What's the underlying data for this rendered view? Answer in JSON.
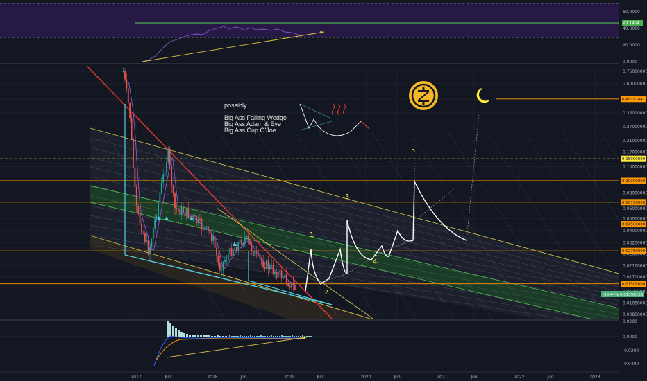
{
  "chart_data": [
    {
      "type": "line",
      "panel": "rsi-indicator",
      "y_ticks": [
        "60.0000",
        "40.0000",
        "20.0000",
        "0.0000"
      ],
      "last_value_tag": "47.1454",
      "grid": true
    },
    {
      "type": "candlestick",
      "panel": "price",
      "scale": "log",
      "y_ticks": [
        "0.75000000",
        "0.60000000",
        "0.45000000",
        "0.35000000",
        "0.27000000",
        "0.21000000",
        "0.17000000",
        "0.13000000",
        "0.08000000",
        "0.06000000",
        "0.05000000",
        "0.04000000",
        "0.03200000",
        "0.02600000",
        "0.02100000",
        "0.01700000",
        "0.01300000",
        "0.01050000",
        "0.00850000"
      ],
      "level_tags": [
        {
          "label": "0.45191441",
          "color": "#ff9800"
        },
        {
          "label": "0.15000000",
          "color": "#ffeb3b"
        },
        {
          "label": "0.10000000",
          "color": "#ff9800"
        },
        {
          "label": "0.06750000",
          "color": "#ff9800"
        },
        {
          "label": "0.04500000",
          "color": "#ff9800"
        },
        {
          "label": "0.02750000",
          "color": "#ff9800"
        },
        {
          "label": "0.01500000",
          "color": "#ff9800"
        }
      ],
      "last_price_tag": {
        "change": "-98.44%",
        "price": "0.01356106"
      },
      "price_series": [
        {
          "x": "2016-11",
          "y": 0.75
        },
        {
          "x": "2016-12",
          "y": 0.35
        },
        {
          "x": "2017-01",
          "y": 0.06
        },
        {
          "x": "2017-03",
          "y": 0.027
        },
        {
          "x": "2017-04",
          "y": 0.05
        },
        {
          "x": "2017-06",
          "y": 0.17
        },
        {
          "x": "2017-07",
          "y": 0.06
        },
        {
          "x": "2017-09",
          "y": 0.055
        },
        {
          "x": "2017-12",
          "y": 0.04
        },
        {
          "x": "2018-01",
          "y": 0.035
        },
        {
          "x": "2018-02",
          "y": 0.02
        },
        {
          "x": "2018-04",
          "y": 0.028
        },
        {
          "x": "2018-06",
          "y": 0.035
        },
        {
          "x": "2018-08",
          "y": 0.024
        },
        {
          "x": "2018-10",
          "y": 0.02
        },
        {
          "x": "2018-12",
          "y": 0.017
        },
        {
          "x": "2019-02",
          "y": 0.0135
        }
      ],
      "annotations": {
        "note_lines": [
          "possibly...",
          "Big Ass Falling Wedge",
          "Big Ass Adam & Eve",
          "Big Ass Cup O'Joe"
        ],
        "wave_labels": [
          "1",
          "2",
          "3",
          "4",
          "5"
        ]
      }
    },
    {
      "type": "histogram",
      "panel": "macd-indicator",
      "y_ticks": [
        "0.0200",
        "0.0000",
        "-0.0200",
        "-0.0400"
      ]
    }
  ],
  "x_axis": {
    "ticks": [
      "2017",
      "Jun",
      "2018",
      "Jun",
      "2019",
      "Jun",
      "2020",
      "Jun",
      "2021",
      "Jun",
      "2022",
      "Jun",
      "2023"
    ]
  },
  "colors": {
    "background": "#131722",
    "rsi_band": "#2a1a4a",
    "rsi_line": "#7e57c2",
    "channel": "#d6c34b",
    "wedge_red": "#e53935",
    "cyan": "#4dd0e1",
    "orange": "#ff9800",
    "yellow": "#ffeb3b",
    "green": "#4caf50"
  },
  "icons": {
    "zcash_logo": "zcash-coin-icon",
    "moon": "crescent-moon-icon",
    "steam": "steam-icon"
  }
}
